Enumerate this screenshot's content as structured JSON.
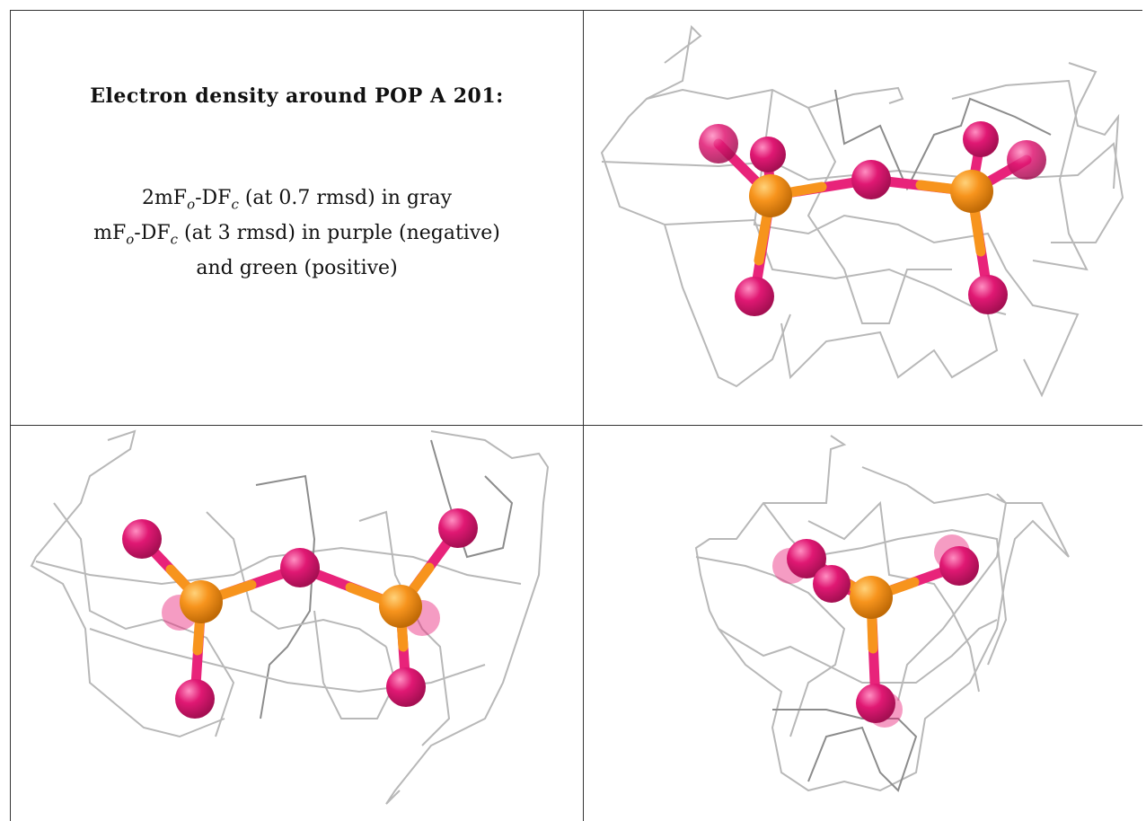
{
  "caption": {
    "title": "Electron density around POP A 201:",
    "lines": [
      [
        "2mF",
        "o",
        "-DF",
        "c",
        " (at 0.7 rmsd) in gray"
      ],
      [
        "mF",
        "o",
        "-DF",
        "c",
        " (at 3 rmsd) in purple (negative)"
      ],
      [
        "and green (positive)"
      ]
    ]
  }
}
